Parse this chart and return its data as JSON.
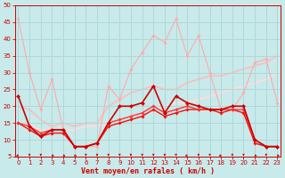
{
  "xlabel": "Vent moyen/en rafales ( km/h )",
  "background_color": "#c8eaea",
  "grid_color": "#b0d8d8",
  "xlim": [
    -0.3,
    23.3
  ],
  "ylim": [
    5,
    50
  ],
  "yticks": [
    5,
    10,
    15,
    20,
    25,
    30,
    35,
    40,
    45,
    50
  ],
  "xticks": [
    0,
    1,
    2,
    3,
    4,
    5,
    6,
    7,
    8,
    9,
    10,
    11,
    12,
    13,
    14,
    15,
    16,
    17,
    18,
    19,
    20,
    21,
    22,
    23
  ],
  "series": [
    {
      "x": [
        0,
        1,
        2,
        3,
        4,
        5,
        6,
        7,
        8,
        9,
        10,
        11,
        12,
        13,
        14,
        15,
        16,
        17,
        18,
        19,
        20,
        21,
        22,
        23
      ],
      "y": [
        46,
        30,
        19,
        28,
        13,
        8,
        8,
        8,
        26,
        22,
        31,
        36,
        41,
        39,
        46,
        35,
        41,
        30,
        19,
        19,
        24,
        33,
        34,
        21
      ],
      "color": "#ffaaaa",
      "linewidth": 0.8,
      "marker": "D",
      "markersize": 1.8,
      "zorder": 2
    },
    {
      "x": [
        0,
        1,
        2,
        3,
        4,
        5,
        6,
        7,
        8,
        9,
        10,
        11,
        12,
        13,
        14,
        15,
        16,
        17,
        18,
        19,
        20,
        21,
        22,
        23
      ],
      "y": [
        23,
        14,
        11,
        13,
        13,
        8,
        8,
        9,
        15,
        20,
        20,
        21,
        26,
        18,
        23,
        21,
        20,
        19,
        19,
        20,
        20,
        10,
        8,
        8
      ],
      "color": "#cc0000",
      "linewidth": 1.2,
      "marker": "D",
      "markersize": 2.2,
      "zorder": 4
    },
    {
      "x": [
        0,
        1,
        2,
        3,
        4,
        5,
        6,
        7,
        8,
        9,
        10,
        11,
        12,
        13,
        14,
        15,
        16,
        17,
        18,
        19,
        20,
        21,
        22,
        23
      ],
      "y": [
        15,
        13,
        11,
        12,
        12,
        8,
        8,
        9,
        14,
        15,
        16,
        17,
        19,
        17,
        18,
        19,
        19,
        19,
        18,
        19,
        18,
        9,
        8,
        8
      ],
      "color": "#ee1111",
      "linewidth": 1.0,
      "marker": "D",
      "markersize": 1.8,
      "zorder": 3
    },
    {
      "x": [
        0,
        1,
        2,
        3,
        4,
        5,
        6,
        7,
        8,
        9,
        10,
        11,
        12,
        13,
        14,
        15,
        16,
        17,
        18,
        19,
        20,
        21,
        22,
        23
      ],
      "y": [
        15,
        14,
        12,
        13,
        13,
        8,
        8,
        9,
        15,
        16,
        17,
        18,
        20,
        18,
        19,
        20,
        19,
        19,
        19,
        19,
        19,
        10,
        8,
        8
      ],
      "color": "#ff3333",
      "linewidth": 1.0,
      "marker": "D",
      "markersize": 1.8,
      "zorder": 3
    },
    {
      "x": [
        0,
        1,
        2,
        3,
        4,
        5,
        6,
        7,
        8,
        9,
        10,
        11,
        12,
        13,
        14,
        15,
        16,
        17,
        18,
        19,
        20,
        21,
        22,
        23
      ],
      "y": [
        20,
        19,
        16,
        14,
        15,
        14,
        15,
        15,
        20,
        22,
        24,
        25,
        26,
        25,
        25,
        27,
        28,
        29,
        29,
        30,
        31,
        32,
        33,
        35
      ],
      "color": "#ffbbbb",
      "linewidth": 1.2,
      "marker": null,
      "markersize": 0,
      "zorder": 1
    },
    {
      "x": [
        0,
        1,
        2,
        3,
        4,
        5,
        6,
        7,
        8,
        9,
        10,
        11,
        12,
        13,
        14,
        15,
        16,
        17,
        18,
        19,
        20,
        21,
        22,
        23
      ],
      "y": [
        15,
        14,
        13,
        13,
        13,
        13,
        14,
        14,
        15,
        16,
        17,
        18,
        19,
        20,
        21,
        21,
        22,
        23,
        24,
        25,
        26,
        27,
        28,
        30
      ],
      "color": "#ffdddd",
      "linewidth": 1.2,
      "marker": null,
      "markersize": 0,
      "zorder": 1
    }
  ],
  "arrow_angles_deg": [
    225,
    270,
    270,
    315,
    315,
    315,
    270,
    270,
    270,
    270,
    270,
    270,
    270,
    270,
    270,
    225,
    270,
    270,
    225,
    270,
    270,
    315,
    270,
    315
  ],
  "tick_fontsize": 5,
  "xlabel_fontsize": 6,
  "tick_color": "#cc0000",
  "spine_color": "#cc0000"
}
